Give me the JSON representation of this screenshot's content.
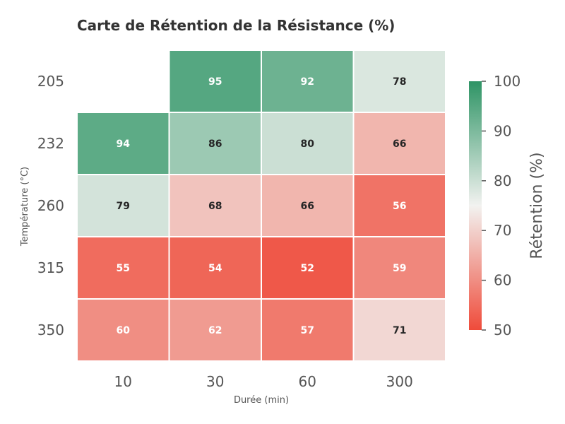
{
  "chart_data": {
    "type": "heatmap",
    "title": "Carte de Rétention de la Résistance (%)",
    "xlabel": "Durée (min)",
    "ylabel": "Température (°C)",
    "x_categories": [
      "10",
      "30",
      "60",
      "300"
    ],
    "y_categories": [
      "205",
      "232",
      "260",
      "315",
      "350"
    ],
    "values": [
      [
        null,
        95,
        92,
        78
      ],
      [
        94,
        86,
        80,
        66
      ],
      [
        79,
        68,
        66,
        56
      ],
      [
        55,
        54,
        52,
        59
      ],
      [
        60,
        62,
        57,
        71
      ]
    ],
    "colorbar": {
      "label": "Rétention (%)",
      "range": [
        50,
        100
      ],
      "ticks": [
        "50",
        "60",
        "70",
        "80",
        "90",
        "100"
      ],
      "colors": {
        "low": "#ef4b3a",
        "mid": "#f2f2f0",
        "high": "#2e9465"
      }
    }
  }
}
